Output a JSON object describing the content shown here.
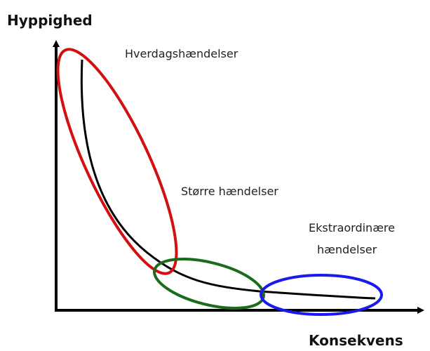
{
  "y_axis_label": "Hyppighed",
  "x_axis_label": "Konsekvens",
  "regions": [
    {
      "label": "Hverdagshændelser"
    },
    {
      "label": "Større hændelser"
    },
    {
      "label_lines": [
        "Ekstraordinære",
        "hændelser"
      ]
    }
  ]
}
